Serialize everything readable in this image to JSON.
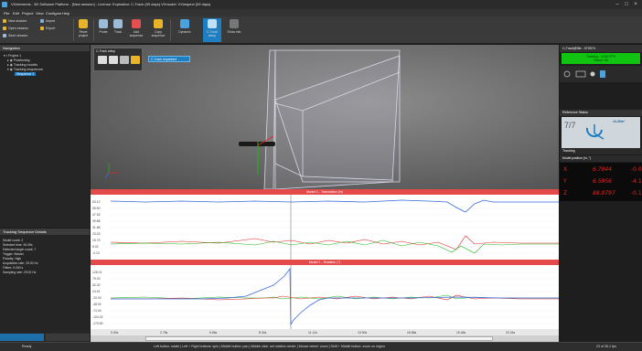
{
  "window": {
    "title": "VXelements - 3D Software Platform - [New session] - License: Expiration: C-Track (09 days) VXmodel: VXinspect (09 days)"
  },
  "menu": [
    "File",
    "Edit",
    "Project",
    "View",
    "Configure",
    "Help"
  ],
  "ribbon": {
    "session": {
      "new": "New session",
      "open": "Open session",
      "save": "Save session"
    },
    "file": {
      "import": "Import",
      "export": "Export"
    },
    "buttons": [
      {
        "label": "Reset project",
        "color": "#e8b52a"
      },
      {
        "label": "Probe",
        "color": "#9bbbd9"
      },
      {
        "label": "Track",
        "color": "#9bbbd9"
      },
      {
        "label": "Add sequence",
        "color": "#e35050"
      },
      {
        "label": "Copy sequence",
        "color": "#e8b52a"
      },
      {
        "label": "Dynamic",
        "color": "#4aa3df"
      },
      {
        "label": "C-Track setup",
        "color": "#4aa3df"
      },
      {
        "label": "Show info",
        "color": "#777777"
      }
    ]
  },
  "navigation": {
    "title": "Navigation",
    "items": [
      "Project 1",
      "Positioning",
      "Tracking models",
      "Tracking sequences",
      "Sequence 1"
    ]
  },
  "details": {
    "title": "Tracking Sequence Details",
    "lines": [
      "Model count: 2",
      "Selected time: 26.05s",
      "Detected target count: 7",
      "Trigger: Master",
      "Polarity: High",
      "Acquisition rate: 29.00 Hz",
      "Filters: 0.000 s",
      "Sampling rate: 29.00 Hz"
    ]
  },
  "view3d": {
    "ctrack_label": "C-Track setup",
    "ctrack_request": "C-Track requested"
  },
  "chart1": {
    "title": "Model 1 - Translation (in)",
    "ticks": [
      "63.12",
      "55.50",
      "47.53",
      "39.88",
      "31.68",
      "23.03",
      "15.75",
      "8.02",
      "-0.13"
    ]
  },
  "chart2": {
    "title": "Model 1 - Rotation (°)",
    "ticks": [
      "128.01",
      "79.03",
      "52.02",
      "24.01",
      "-20.00",
      "-48.02",
      "-74.04",
      "-104.02",
      "-175.89"
    ]
  },
  "xaxis": [
    "0.00s",
    "2.78s",
    "5.56s",
    "8.34s",
    "11.12s",
    "13.90s",
    "16.68s",
    "19.46s",
    "22.24s"
  ],
  "right_panel": {
    "title": "C-Track|Elite - 073074",
    "status_line1": "Tracking - 16:50 FPS",
    "status_line2": "Status: Ok",
    "reference_title": "Reference Status",
    "targets": "7/7",
    "reference_value": "14.40m³",
    "tracking_title": "Tracking",
    "model_position": "Model position (in, °)",
    "coords": [
      {
        "axis": "X",
        "pos": "6.7844",
        "rot": "-0.0"
      },
      {
        "axis": "Y",
        "pos": "6.5956",
        "rot": "-4.1"
      },
      {
        "axis": "Z",
        "pos": "88.0797",
        "rot": "-0.1"
      }
    ]
  },
  "status": {
    "left": "Ready",
    "hint": "Left button: rotate | Left + Right buttons: spin | Middle button: pan | Middle click: set rotation center | Mouse wheel: zoom | Shift + Middle button: zoom on region",
    "right": "23 of 35.1 fps"
  },
  "colors": {
    "accent": "#1d7ec2",
    "chart_header": "#e54a4a",
    "ok": "#12c412",
    "coord": "#e02626"
  }
}
